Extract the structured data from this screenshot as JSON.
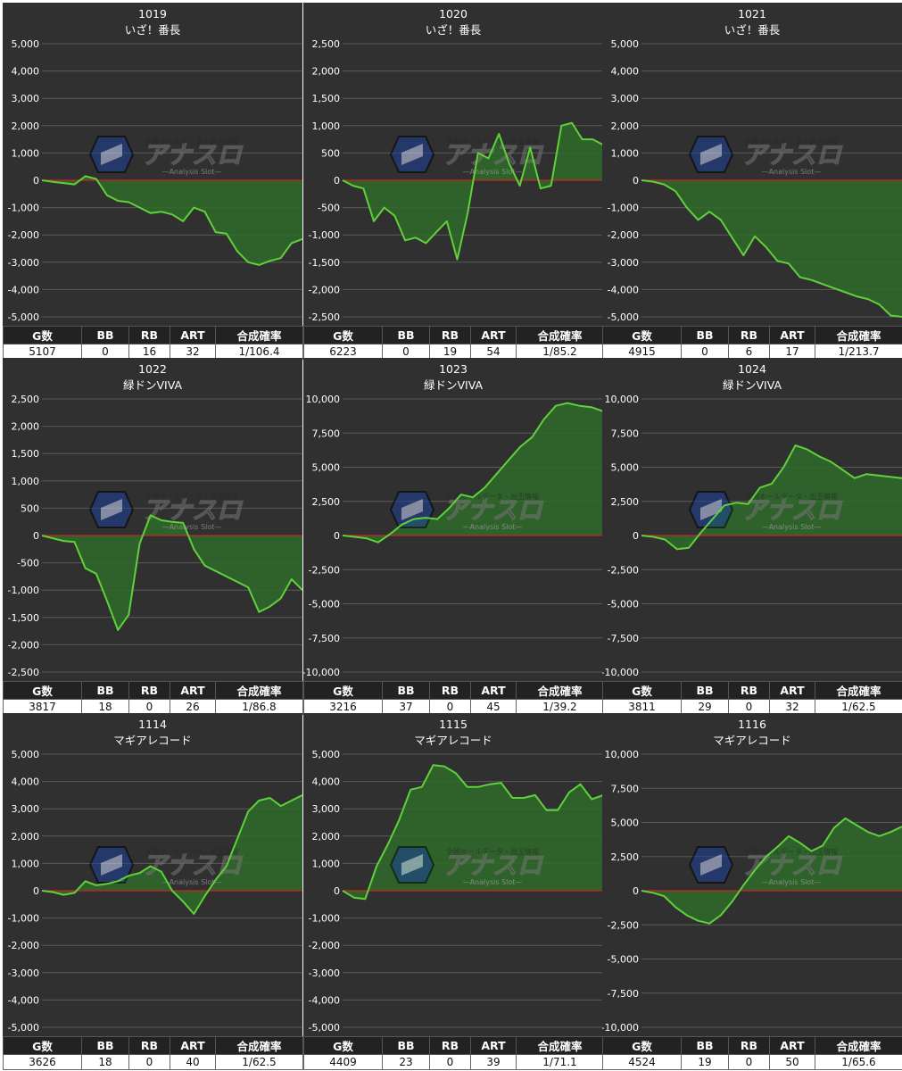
{
  "headers": [
    "G数",
    "BB",
    "RB",
    "ART",
    "合成確率"
  ],
  "colors": {
    "background": "#303030",
    "grid": "#5a5a5a",
    "zero_line": "#cc2222",
    "line": "#5fd13a",
    "fill": "#2f6a2a",
    "text": "#ffffff",
    "header_bg": "#222222"
  },
  "watermark": {
    "logo_text": "アナスロ",
    "tagline": "全国ホールデータ・出玉情報",
    "sub": "Analysis Slot"
  },
  "chart_data": [
    {
      "type": "area",
      "machine_no": "1019",
      "machine_name": "いざ！番長",
      "ylim": [
        -5000,
        5000
      ],
      "yticks": [
        5000,
        4000,
        3000,
        2000,
        1000,
        0,
        -1000,
        -2000,
        -3000,
        -4000,
        -5000
      ],
      "values": [
        0,
        -60,
        -100,
        -150,
        150,
        50,
        -550,
        -750,
        -800,
        -1000,
        -1200,
        -1150,
        -1250,
        -1500,
        -1000,
        -1150,
        -1900,
        -1950,
        -2600,
        -3000,
        -3100,
        -2950,
        -2850,
        -2300,
        -2150
      ],
      "stats": {
        "games": "5107",
        "bb": "0",
        "rb": "16",
        "art": "32",
        "prob": "1/106.4"
      }
    },
    {
      "type": "area",
      "machine_no": "1020",
      "machine_name": "いざ！番長",
      "ylim": [
        -2500,
        2500
      ],
      "yticks": [
        2500,
        2000,
        1500,
        1000,
        500,
        0,
        -500,
        -1000,
        -1500,
        -2000,
        -2500
      ],
      "values": [
        0,
        -100,
        -150,
        -750,
        -500,
        -650,
        -1100,
        -1050,
        -1150,
        -950,
        -750,
        -1450,
        -600,
        500,
        400,
        850,
        300,
        -100,
        600,
        -150,
        -100,
        1000,
        1050,
        750,
        750,
        650
      ],
      "stats": {
        "games": "6223",
        "bb": "0",
        "rb": "19",
        "art": "54",
        "prob": "1/85.2"
      }
    },
    {
      "type": "area",
      "machine_no": "1021",
      "machine_name": "いざ！番長",
      "ylim": [
        -5000,
        5000
      ],
      "yticks": [
        5000,
        4000,
        3000,
        2000,
        1000,
        0,
        -1000,
        -2000,
        -3000,
        -4000,
        -5000
      ],
      "values": [
        0,
        -50,
        -150,
        -400,
        -1000,
        -1450,
        -1150,
        -1450,
        -2100,
        -2750,
        -2050,
        -2450,
        -2950,
        -3050,
        -3550,
        -3650,
        -3800,
        -3950,
        -4100,
        -4250,
        -4350,
        -4550,
        -4950,
        -5000
      ],
      "stats": {
        "games": "4915",
        "bb": "0",
        "rb": "6",
        "art": "17",
        "prob": "1/213.7"
      }
    },
    {
      "type": "area",
      "machine_no": "1022",
      "machine_name": "緑ドンVIVA",
      "ylim": [
        -2500,
        2500
      ],
      "yticks": [
        2500,
        2000,
        1500,
        1000,
        500,
        0,
        -500,
        -1000,
        -1500,
        -2000,
        -2500
      ],
      "values": [
        0,
        -50,
        -100,
        -120,
        -600,
        -700,
        -1200,
        -1730,
        -1450,
        -150,
        370,
        280,
        250,
        230,
        -250,
        -550,
        -650,
        -750,
        -850,
        -950,
        -1400,
        -1300,
        -1150,
        -800,
        -1000
      ],
      "stats": {
        "games": "3817",
        "bb": "18",
        "rb": "0",
        "art": "26",
        "prob": "1/86.8"
      }
    },
    {
      "type": "area",
      "machine_no": "1023",
      "machine_name": "緑ドンVIVA",
      "ylim": [
        -10000,
        10000
      ],
      "yticks": [
        10000,
        7500,
        5000,
        2500,
        0,
        -2500,
        -5000,
        -7500,
        -10000
      ],
      "values": [
        0,
        -100,
        -200,
        -500,
        100,
        800,
        1200,
        1300,
        1200,
        2000,
        3000,
        2800,
        3500,
        4500,
        5500,
        6500,
        7200,
        8500,
        9500,
        9700,
        9500,
        9400,
        9100
      ],
      "stats": {
        "games": "3216",
        "bb": "37",
        "rb": "0",
        "art": "45",
        "prob": "1/39.2"
      }
    },
    {
      "type": "area",
      "machine_no": "1024",
      "machine_name": "緑ドンVIVA",
      "ylim": [
        -10000,
        10000
      ],
      "yticks": [
        10000,
        7500,
        5000,
        2500,
        0,
        -2500,
        -5000,
        -7500,
        -10000
      ],
      "values": [
        0,
        -100,
        -300,
        -1000,
        -900,
        200,
        1200,
        2200,
        2400,
        2300,
        3500,
        3800,
        5000,
        6600,
        6300,
        5800,
        5400,
        4800,
        4200,
        4500,
        4400,
        4300,
        4200
      ],
      "stats": {
        "games": "3811",
        "bb": "29",
        "rb": "0",
        "art": "32",
        "prob": "1/62.5"
      }
    },
    {
      "type": "area",
      "machine_no": "1114",
      "machine_name": "マギアレコード",
      "ylim": [
        -5000,
        5000
      ],
      "yticks": [
        5000,
        4000,
        3000,
        2000,
        1000,
        0,
        -1000,
        -2000,
        -3000,
        -4000,
        -5000
      ],
      "values": [
        0,
        -50,
        -150,
        -80,
        350,
        200,
        250,
        350,
        550,
        650,
        900,
        700,
        0,
        -400,
        -850,
        -200,
        400,
        900,
        1900,
        2900,
        3300,
        3400,
        3100,
        3300,
        3500
      ],
      "stats": {
        "games": "3626",
        "bb": "18",
        "rb": "0",
        "art": "40",
        "prob": "1/62.5"
      }
    },
    {
      "type": "area",
      "machine_no": "1115",
      "machine_name": "マギアレコード",
      "ylim": [
        -5000,
        5000
      ],
      "yticks": [
        5000,
        4000,
        3000,
        2000,
        1000,
        0,
        -1000,
        -2000,
        -3000,
        -4000,
        -5000
      ],
      "values": [
        0,
        -250,
        -300,
        900,
        1700,
        2600,
        3700,
        3800,
        4600,
        4550,
        4300,
        3800,
        3800,
        3900,
        3950,
        3400,
        3400,
        3500,
        2950,
        2950,
        3600,
        3900,
        3350,
        3500
      ],
      "stats": {
        "games": "4409",
        "bb": "23",
        "rb": "0",
        "art": "39",
        "prob": "1/71.1"
      }
    },
    {
      "type": "area",
      "machine_no": "1116",
      "machine_name": "マギアレコード",
      "ylim": [
        -10000,
        10000
      ],
      "yticks": [
        10000,
        7500,
        5000,
        2500,
        0,
        -2500,
        -5000,
        -7500,
        -10000
      ],
      "values": [
        0,
        -150,
        -400,
        -1200,
        -1800,
        -2200,
        -2400,
        -1800,
        -800,
        400,
        1500,
        2500,
        3200,
        4000,
        3500,
        2900,
        3300,
        4600,
        5300,
        4800,
        4300,
        4000,
        4300,
        4700
      ],
      "stats": {
        "games": "4524",
        "bb": "19",
        "rb": "0",
        "art": "50",
        "prob": "1/65.6"
      }
    }
  ]
}
